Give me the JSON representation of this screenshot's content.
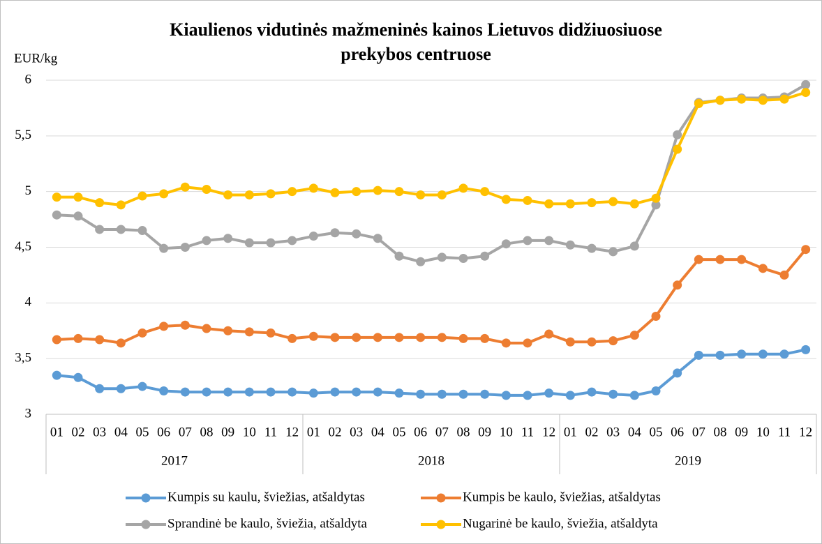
{
  "chart_data": {
    "type": "line",
    "title": [
      "Kiaulienos vidutinės mažmeninės kainos Lietuvos didžiuosiuose",
      "prekybos centruose"
    ],
    "y_label": "EUR/kg",
    "categories": [
      "01",
      "02",
      "03",
      "04",
      "05",
      "06",
      "07",
      "08",
      "09",
      "10",
      "11",
      "12",
      "01",
      "02",
      "03",
      "04",
      "05",
      "06",
      "07",
      "08",
      "09",
      "10",
      "11",
      "12",
      "01",
      "02",
      "03",
      "04",
      "05",
      "06",
      "07",
      "08",
      "09",
      "10",
      "11",
      "12"
    ],
    "years": [
      "2017",
      "2018",
      "2019"
    ],
    "ylim": [
      3,
      6
    ],
    "yticks": [
      3,
      {
        "value": 3.5,
        "label": "3,5"
      },
      4,
      {
        "value": 4.5,
        "label": "4,5"
      },
      5,
      {
        "value": 5.5,
        "label": "5,5"
      },
      6
    ],
    "grid": true,
    "series": [
      {
        "name": "Kumpis su kaulu, šviežias, atšaldytas",
        "color": "#5b9bd5",
        "values": [
          3.35,
          3.33,
          3.23,
          3.23,
          3.25,
          3.21,
          3.2,
          3.2,
          3.2,
          3.2,
          3.2,
          3.2,
          3.19,
          3.2,
          3.2,
          3.2,
          3.19,
          3.18,
          3.18,
          3.18,
          3.18,
          3.17,
          3.17,
          3.19,
          3.17,
          3.2,
          3.18,
          3.17,
          3.21,
          3.37,
          3.53,
          3.53,
          3.54,
          3.54,
          3.54,
          3.58
        ]
      },
      {
        "name": "Kumpis be kaulo, šviežias, atšaldytas",
        "color": "#ed7d31",
        "values": [
          3.67,
          3.68,
          3.67,
          3.64,
          3.73,
          3.79,
          3.8,
          3.77,
          3.75,
          3.74,
          3.73,
          3.68,
          3.7,
          3.69,
          3.69,
          3.69,
          3.69,
          3.69,
          3.69,
          3.68,
          3.68,
          3.64,
          3.64,
          3.72,
          3.65,
          3.65,
          3.66,
          3.71,
          3.88,
          4.16,
          4.39,
          4.39,
          4.39,
          4.31,
          4.25,
          4.48
        ]
      },
      {
        "name": "Sprandinė be kaulo, šviežia, atšaldyta",
        "color": "#a5a5a5",
        "values": [
          4.79,
          4.78,
          4.66,
          4.66,
          4.65,
          4.49,
          4.5,
          4.56,
          4.58,
          4.54,
          4.54,
          4.56,
          4.6,
          4.63,
          4.62,
          4.58,
          4.42,
          4.37,
          4.41,
          4.4,
          4.42,
          4.53,
          4.56,
          4.56,
          4.52,
          4.49,
          4.46,
          4.51,
          4.88,
          5.51,
          5.8,
          5.82,
          5.84,
          5.84,
          5.85,
          5.96
        ]
      },
      {
        "name": "Nugarinė be kaulo, šviežia, atšaldyta",
        "color": "#ffc000",
        "values": [
          4.95,
          4.95,
          4.9,
          4.88,
          4.96,
          4.98,
          5.04,
          5.02,
          4.97,
          4.97,
          4.98,
          5.0,
          5.03,
          4.99,
          5.0,
          5.01,
          5.0,
          4.97,
          4.97,
          5.03,
          5.0,
          4.93,
          4.92,
          4.89,
          4.89,
          4.9,
          4.91,
          4.89,
          4.94,
          5.38,
          5.79,
          5.82,
          5.83,
          5.82,
          5.83,
          5.89
        ]
      }
    ]
  }
}
